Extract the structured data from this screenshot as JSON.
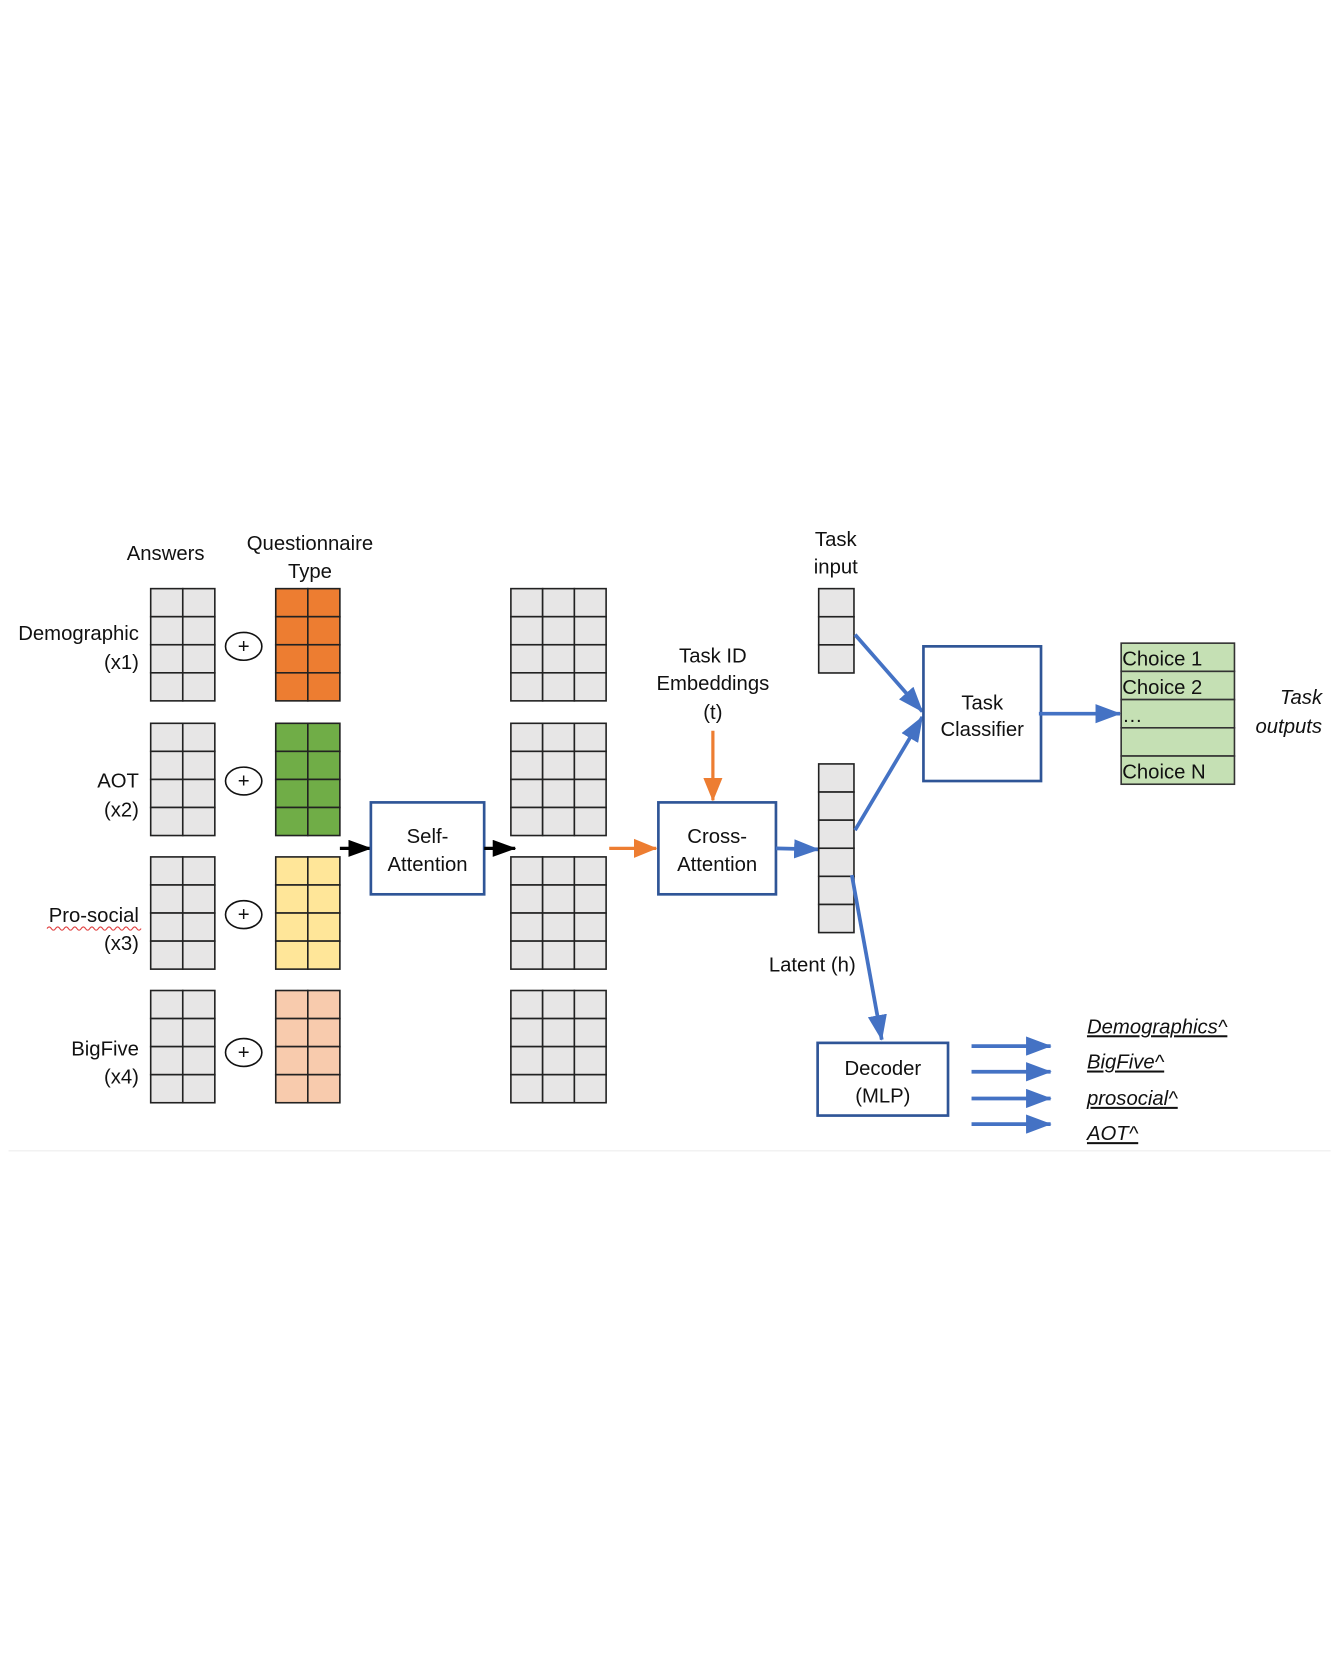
{
  "colors": {
    "cell_gray": "#E7E6E6",
    "demographic_type": "#ED7D31",
    "aot_type": "#70AD47",
    "prosocial_type": "#FFE699",
    "bigfive_type": "#F8CBAD",
    "choice_fill": "#C5E0B4",
    "box_border": "#2F5597",
    "arrow_blue": "#4472C4",
    "arrow_orange": "#ED7D31",
    "arrow_black": "#000000"
  },
  "headers": {
    "answers": "Answers",
    "questionnaire_line1": "Questionnaire",
    "questionnaire_line2": "Type"
  },
  "groups": [
    {
      "name": "Demographic",
      "count": "(x1)",
      "color_key": "demographic_type"
    },
    {
      "name": "AOT",
      "count": "(x2)",
      "color_key": "aot_type"
    },
    {
      "name": "Pro-social",
      "count": "(x3)",
      "color_key": "prosocial_type"
    },
    {
      "name": "BigFive",
      "count": "(x4)",
      "color_key": "bigfive_type"
    }
  ],
  "plus_symbol": "+",
  "self_attention": {
    "line1": "Self-",
    "line2": "Attention"
  },
  "cross_attention": {
    "line1": "Cross-",
    "line2": "Attention"
  },
  "task_id": {
    "line1": "Task ID",
    "line2": "Embeddings",
    "line3": "(t)"
  },
  "task_input": {
    "line1": "Task",
    "line2": "input"
  },
  "latent_label": "Latent (h)",
  "task_classifier": {
    "line1": "Task",
    "line2": "Classifier"
  },
  "choices": [
    "Choice 1",
    "Choice 2",
    "…",
    "",
    "Choice N"
  ],
  "task_outputs": {
    "line1": "Task",
    "line2": "outputs"
  },
  "decoder": {
    "line1": "Decoder",
    "line2": "(MLP)"
  },
  "decoder_outputs": [
    "Demographics^",
    "BigFive^",
    "prosocial^",
    "AOT^"
  ]
}
